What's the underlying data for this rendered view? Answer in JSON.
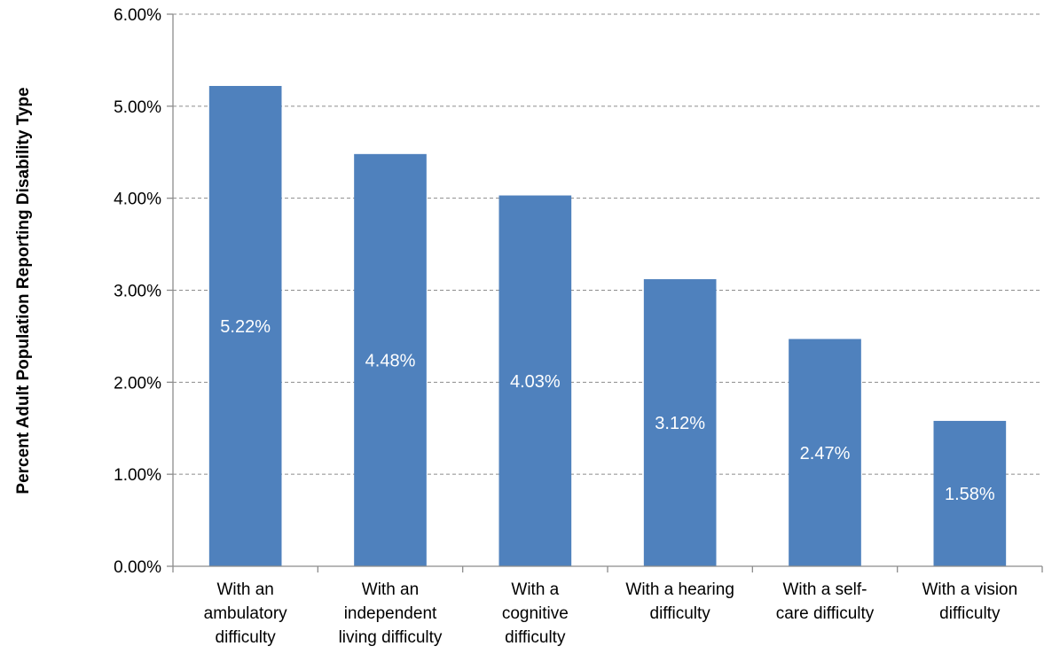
{
  "chart_data": {
    "type": "bar",
    "title": "",
    "xlabel": "",
    "ylabel": "Percent Adult Population Reporting Disability Type",
    "categories": [
      [
        "With an",
        "ambulatory",
        "difficulty"
      ],
      [
        "With an",
        "independent",
        "living difficulty"
      ],
      [
        "With a",
        "cognitive",
        "difficulty"
      ],
      [
        "With a hearing",
        "difficulty"
      ],
      [
        "With a self-",
        "care difficulty"
      ],
      [
        "With a vision",
        "difficulty"
      ]
    ],
    "values": [
      5.22,
      4.48,
      4.03,
      3.12,
      2.47,
      1.58
    ],
    "data_labels": [
      "5.22%",
      "4.48%",
      "4.03%",
      "3.12%",
      "2.47%",
      "1.58%"
    ],
    "ylim": [
      0,
      6
    ],
    "yticks": [
      0,
      1,
      2,
      3,
      4,
      5,
      6
    ],
    "ytick_labels": [
      "0.00%",
      "1.00%",
      "2.00%",
      "3.00%",
      "4.00%",
      "5.00%",
      "6.00%"
    ],
    "grid": true,
    "bar_color": "#4f81bd",
    "label_color": "#ffffff",
    "grid_color": "#8c8c8c"
  }
}
